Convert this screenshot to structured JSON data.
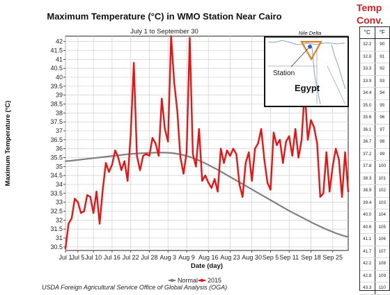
{
  "chart_data": {
    "type": "line",
    "title": "Maximum Temperature (°C) in WMO Station Near Cairo",
    "subtitle": "July 1 to September 30",
    "xlabel": "Date (day)",
    "ylabel": "Maximum Temperature (°C)",
    "ylim": [
      30.3,
      42.3
    ],
    "yticks": [
      "30.5",
      "31",
      "31.5",
      "32",
      "32.5",
      "33",
      "33.5",
      "34",
      "34.5",
      "35",
      "35.5",
      "36",
      "36.5",
      "37",
      "37.5",
      "38",
      "38.5",
      "39",
      "39.5",
      "40",
      "40.5",
      "41",
      "41.5",
      "42"
    ],
    "xtick_labels": [
      "Jul 1",
      "Jul 5",
      "Jul 10",
      "Jul 16",
      "Jul 22",
      "Jul 28",
      "Aug 3",
      "Aug 9",
      "Aug 16",
      "Aug 23",
      "Aug 30",
      "Sep 5",
      "Sep 11",
      "Sep 18",
      "Sep 25"
    ],
    "xtick_days": [
      0,
      4,
      9,
      15,
      21,
      27,
      33,
      39,
      46,
      53,
      60,
      66,
      72,
      79,
      86
    ],
    "x_range": [
      0,
      91
    ],
    "grid": true,
    "legend_position": "bottom-center",
    "series": [
      {
        "name": "Normal",
        "color": "#808080",
        "values": [
          35.3,
          35.31,
          35.33,
          35.35,
          35.37,
          35.39,
          35.41,
          35.43,
          35.45,
          35.47,
          35.49,
          35.51,
          35.53,
          35.55,
          35.57,
          35.59,
          35.61,
          35.63,
          35.65,
          35.67,
          35.69,
          35.7,
          35.72,
          35.73,
          35.74,
          35.75,
          35.76,
          35.77,
          35.77,
          35.78,
          35.78,
          35.78,
          35.78,
          35.77,
          35.76,
          35.74,
          35.71,
          35.68,
          35.64,
          35.59,
          35.54,
          35.48,
          35.41,
          35.34,
          35.26,
          35.18,
          35.09,
          35.0,
          34.91,
          34.82,
          34.72,
          34.62,
          34.52,
          34.42,
          34.32,
          34.22,
          34.12,
          34.02,
          33.92,
          33.82,
          33.72,
          33.62,
          33.52,
          33.42,
          33.32,
          33.22,
          33.12,
          33.02,
          32.92,
          32.82,
          32.72,
          32.62,
          32.52,
          32.43,
          32.34,
          32.25,
          32.16,
          32.07,
          31.98,
          31.89,
          31.8,
          31.72,
          31.64,
          31.56,
          31.48,
          31.41,
          31.34,
          31.27,
          31.21,
          31.15,
          31.1,
          31.05
        ]
      },
      {
        "name": "2015",
        "color": "#ee1111",
        "values": [
          30.4,
          31.8,
          32.1,
          33.2,
          33.0,
          32.4,
          32.5,
          33.4,
          33.3,
          32.4,
          33.6,
          31.8,
          33.7,
          35.2,
          34.7,
          35.1,
          35.9,
          35.5,
          34.8,
          35.3,
          34.2,
          36.8,
          40.8,
          35.6,
          34.8,
          35.6,
          35.7,
          35.6,
          36.6,
          36.3,
          35.6,
          38.8,
          37.1,
          36.4,
          42.3,
          39.7,
          38.1,
          35.5,
          34.6,
          35.8,
          42.2,
          35.7,
          35.0,
          37.1,
          34.2,
          34.5,
          34.1,
          33.8,
          34.3,
          33.6,
          36.0,
          35.2,
          35.9,
          35.6,
          36.0,
          35.7,
          34.0,
          33.3,
          35.2,
          35.8,
          34.2,
          36.0,
          36.3,
          37.1,
          35.4,
          34.1,
          33.7,
          36.9,
          36.2,
          36.5,
          35.2,
          36.4,
          36.7,
          35.6,
          37.1,
          35.5,
          36.5,
          39.3,
          36.5,
          37.6,
          37.2,
          36.3,
          33.3,
          33.5,
          35.8,
          33.6,
          35.0,
          36.0,
          35.4,
          33.3,
          35.8,
          33.6
        ]
      }
    ],
    "source": "USDA Foreign Agricultural Service Office of Global Analysis (OGA)"
  },
  "inset_map": {
    "region_label": "Nile Delta",
    "station_label": "Station",
    "country_label": "Egypt",
    "marker_color": "#3b5fc0",
    "triangle_color": "#e87a1e"
  },
  "conversion": {
    "title_line1": "Temp",
    "title_line2": "Conv.",
    "col_c": "°C",
    "col_f": "°F",
    "rows": [
      [
        "32.2",
        "90"
      ],
      [
        "32.8",
        "91"
      ],
      [
        "33.3",
        "92"
      ],
      [
        "33.9",
        "93"
      ],
      [
        "34.4",
        "94"
      ],
      [
        "35.0",
        "95"
      ],
      [
        "35.6",
        "96"
      ],
      [
        "36.1",
        "97"
      ],
      [
        "36.7",
        "98"
      ],
      [
        "37.2",
        "99"
      ],
      [
        "37.8",
        "100"
      ],
      [
        "38.3",
        "101"
      ],
      [
        "38.9",
        "102"
      ],
      [
        "39.4",
        "103"
      ],
      [
        "40.0",
        "104"
      ],
      [
        "40.6",
        "105"
      ],
      [
        "41.1",
        "106"
      ],
      [
        "41.7",
        "107"
      ],
      [
        "42.2",
        "108"
      ],
      [
        "42.8",
        "109"
      ],
      [
        "43.3",
        "110"
      ]
    ]
  }
}
